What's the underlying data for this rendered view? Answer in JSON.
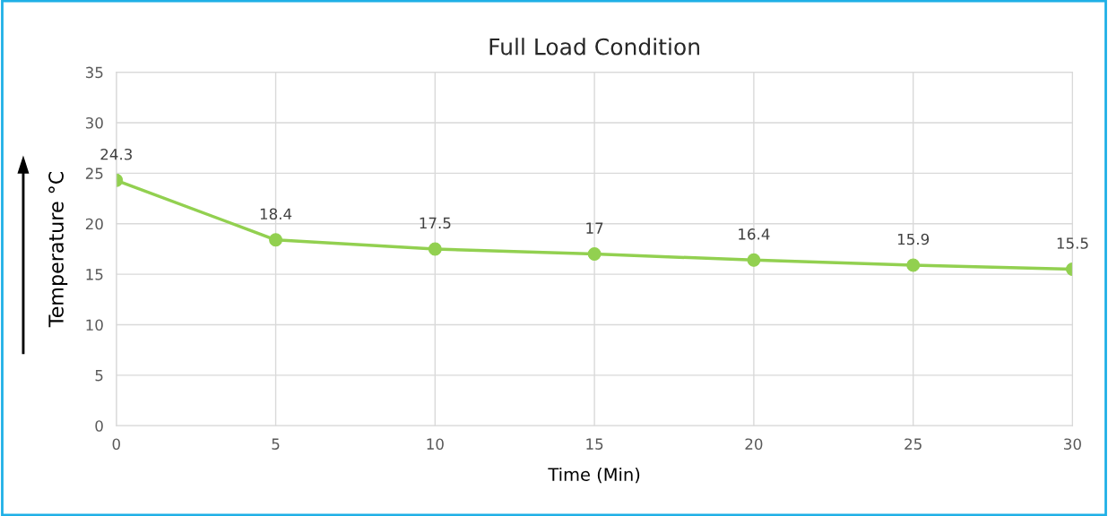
{
  "chart_data": {
    "type": "line",
    "title": "Full Load Condition",
    "xlabel": "Time (Min)",
    "ylabel": "Temperature °C",
    "x": [
      0,
      5,
      10,
      15,
      20,
      25,
      30
    ],
    "series": [
      {
        "color": "#92d050",
        "values": [
          24.3,
          18.4,
          17.5,
          17,
          16.4,
          15.9,
          15.5
        ]
      }
    ],
    "xlim": [
      0,
      30
    ],
    "xticks": [
      0,
      5,
      10,
      15,
      20,
      25,
      30
    ],
    "ylim": [
      0,
      35
    ],
    "yticks": [
      0,
      5,
      10,
      15,
      20,
      25,
      30,
      35
    ],
    "grid": true,
    "marker": "circle",
    "line_style": "solid",
    "data_labels": true
  }
}
